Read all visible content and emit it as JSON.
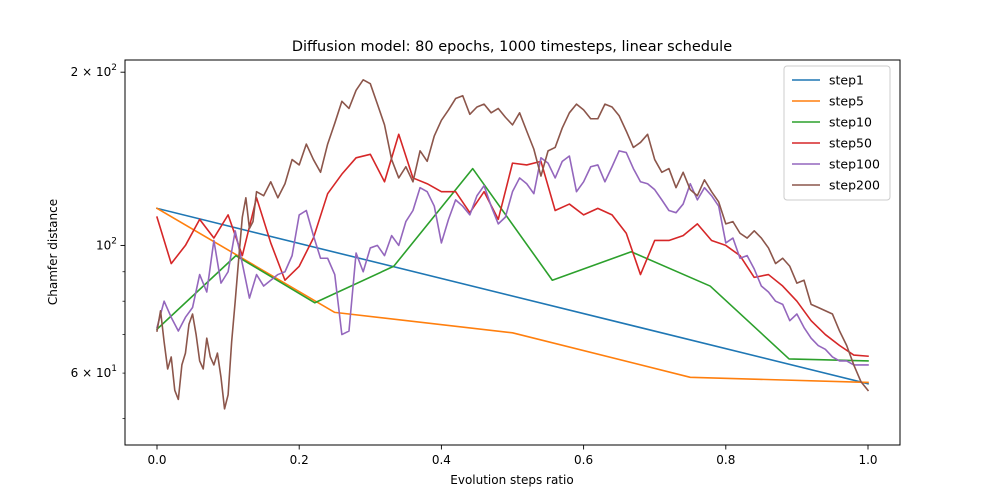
{
  "chart_data": {
    "type": "line",
    "title": "Diffusion model: 80 epochs, 1000 timesteps, linear schedule",
    "xlabel": "Evolution steps ratio",
    "ylabel": "Chamfer distance",
    "xlim": [
      -0.045,
      1.045
    ],
    "ylim": [
      45,
      210
    ],
    "yscale": "log",
    "legend_position": "top-right",
    "x_ticks": [
      {
        "value": 0.0,
        "label": "0.0"
      },
      {
        "value": 0.2,
        "label": "0.2"
      },
      {
        "value": 0.4,
        "label": "0.4"
      },
      {
        "value": 0.6,
        "label": "0.6"
      },
      {
        "value": 0.8,
        "label": "0.8"
      },
      {
        "value": 1.0,
        "label": "1.0"
      }
    ],
    "y_major_ticks": [
      {
        "value": 100,
        "base": "10",
        "exp": "2",
        "mantissa": ""
      },
      {
        "value": 200,
        "base": "10",
        "exp": "2",
        "mantissa": "2 × "
      }
    ],
    "y_minor_ticks": [
      {
        "value": 60,
        "base": "10",
        "exp": "1",
        "mantissa": "6 × "
      },
      {
        "value": 50,
        "label": ""
      },
      {
        "value": 70,
        "label": ""
      },
      {
        "value": 80,
        "label": ""
      },
      {
        "value": 90,
        "label": ""
      }
    ],
    "series": [
      {
        "name": "step1",
        "color": "#1f77b4",
        "x": [
          0.0,
          1.0
        ],
        "y": [
          116,
          57.5
        ]
      },
      {
        "name": "step5",
        "color": "#ff7f0e",
        "x": [
          0.0,
          0.25,
          0.5,
          0.75,
          1.0
        ],
        "y": [
          116,
          76.5,
          70.5,
          59.0,
          57.8
        ]
      },
      {
        "name": "step10",
        "color": "#2ca02c",
        "x": [
          0.0,
          0.111,
          0.222,
          0.333,
          0.444,
          0.556,
          0.667,
          0.778,
          0.889,
          1.0
        ],
        "y": [
          71.5,
          96.0,
          79.5,
          92.0,
          136.0,
          87.0,
          97.5,
          85.0,
          63.5,
          63.0
        ]
      },
      {
        "name": "step50",
        "color": "#d62728",
        "x": [
          0.0,
          0.02,
          0.04,
          0.06,
          0.08,
          0.1,
          0.12,
          0.14,
          0.16,
          0.18,
          0.2,
          0.22,
          0.24,
          0.26,
          0.28,
          0.3,
          0.32,
          0.34,
          0.36,
          0.38,
          0.4,
          0.42,
          0.44,
          0.46,
          0.48,
          0.5,
          0.52,
          0.54,
          0.56,
          0.58,
          0.6,
          0.62,
          0.64,
          0.66,
          0.68,
          0.7,
          0.72,
          0.74,
          0.76,
          0.78,
          0.8,
          0.82,
          0.84,
          0.86,
          0.88,
          0.9,
          0.92,
          0.94,
          0.96,
          0.98,
          1.0
        ],
        "y": [
          112,
          93,
          100,
          111,
          103,
          113,
          96,
          121,
          101,
          87,
          92,
          103,
          123,
          133,
          142,
          144,
          129,
          156,
          131,
          128,
          124,
          124,
          114,
          124,
          111,
          139,
          138,
          140,
          115,
          118,
          113,
          116,
          113,
          105,
          89,
          102,
          102,
          104,
          109,
          102,
          100,
          96,
          88,
          89,
          85,
          80,
          74,
          70,
          67,
          64.5,
          64.2
        ]
      },
      {
        "name": "step100",
        "color": "#9467bd",
        "x": [
          0.0,
          0.01,
          0.02,
          0.03,
          0.04,
          0.05,
          0.06,
          0.07,
          0.08,
          0.09,
          0.1,
          0.11,
          0.12,
          0.13,
          0.14,
          0.15,
          0.16,
          0.17,
          0.18,
          0.19,
          0.2,
          0.21,
          0.22,
          0.23,
          0.24,
          0.25,
          0.26,
          0.27,
          0.28,
          0.29,
          0.3,
          0.31,
          0.32,
          0.33,
          0.34,
          0.35,
          0.36,
          0.37,
          0.38,
          0.39,
          0.4,
          0.41,
          0.42,
          0.43,
          0.44,
          0.45,
          0.46,
          0.47,
          0.48,
          0.49,
          0.5,
          0.51,
          0.52,
          0.53,
          0.54,
          0.55,
          0.56,
          0.57,
          0.58,
          0.59,
          0.6,
          0.61,
          0.62,
          0.63,
          0.64,
          0.65,
          0.66,
          0.67,
          0.68,
          0.69,
          0.7,
          0.71,
          0.72,
          0.73,
          0.74,
          0.75,
          0.76,
          0.77,
          0.78,
          0.79,
          0.8,
          0.81,
          0.82,
          0.83,
          0.84,
          0.85,
          0.86,
          0.87,
          0.88,
          0.89,
          0.9,
          0.91,
          0.92,
          0.93,
          0.94,
          0.95,
          0.96,
          0.97,
          0.98,
          0.99,
          1.0
        ],
        "y": [
          72,
          80,
          75,
          71,
          75,
          78,
          89,
          83,
          102,
          86,
          90,
          106,
          93,
          81,
          89,
          85,
          87,
          89,
          90,
          96,
          113,
          115,
          104,
          95,
          95,
          89,
          70,
          71,
          97,
          90,
          99,
          100,
          96,
          104,
          100,
          110,
          115,
          126,
          124,
          117,
          101,
          111,
          120,
          117,
          113,
          122,
          127,
          117,
          109,
          112,
          124,
          131,
          128,
          123,
          142,
          139,
          131,
          140,
          143,
          124,
          129,
          137,
          138,
          129,
          137,
          146,
          145,
          136,
          129,
          128,
          125,
          120,
          115,
          114,
          118,
          128,
          120,
          126,
          122,
          117,
          101,
          103,
          95,
          96,
          91,
          85,
          83,
          80,
          79,
          74,
          76,
          72,
          69,
          67,
          66,
          64,
          63,
          63,
          62,
          62,
          62
        ]
      },
      {
        "name": "step200",
        "color": "#8c564b",
        "x": [
          0.0,
          0.005,
          0.01,
          0.015,
          0.02,
          0.025,
          0.03,
          0.035,
          0.04,
          0.045,
          0.05,
          0.055,
          0.06,
          0.065,
          0.07,
          0.075,
          0.08,
          0.085,
          0.09,
          0.095,
          0.1,
          0.105,
          0.11,
          0.115,
          0.12,
          0.125,
          0.13,
          0.135,
          0.14,
          0.15,
          0.16,
          0.17,
          0.18,
          0.19,
          0.2,
          0.21,
          0.22,
          0.23,
          0.24,
          0.25,
          0.26,
          0.27,
          0.28,
          0.29,
          0.3,
          0.31,
          0.32,
          0.33,
          0.34,
          0.35,
          0.36,
          0.37,
          0.38,
          0.39,
          0.4,
          0.41,
          0.42,
          0.43,
          0.44,
          0.45,
          0.46,
          0.47,
          0.48,
          0.49,
          0.5,
          0.51,
          0.52,
          0.53,
          0.54,
          0.55,
          0.56,
          0.57,
          0.58,
          0.59,
          0.6,
          0.61,
          0.62,
          0.63,
          0.64,
          0.65,
          0.66,
          0.67,
          0.68,
          0.69,
          0.7,
          0.71,
          0.72,
          0.73,
          0.74,
          0.75,
          0.76,
          0.77,
          0.78,
          0.79,
          0.8,
          0.81,
          0.82,
          0.83,
          0.84,
          0.85,
          0.86,
          0.87,
          0.88,
          0.89,
          0.9,
          0.91,
          0.92,
          0.93,
          0.94,
          0.95,
          0.96,
          0.97,
          0.98,
          0.99,
          1.0
        ],
        "y": [
          71,
          77,
          68,
          61,
          64,
          56,
          54,
          62,
          65,
          73,
          76,
          70,
          63,
          61,
          69,
          64,
          62,
          65,
          59,
          52,
          55,
          68,
          80,
          95,
          112,
          121,
          107,
          110,
          124,
          122,
          129,
          121,
          128,
          141,
          138,
          150,
          141,
          134,
          150,
          163,
          178,
          173,
          186,
          194,
          191,
          176,
          162,
          141,
          131,
          137,
          129,
          146,
          140,
          155,
          165,
          172,
          180,
          182,
          169,
          174,
          176,
          170,
          173,
          167,
          162,
          170,
          158,
          147,
          132,
          146,
          148,
          160,
          170,
          176,
          172,
          166,
          166,
          176,
          174,
          168,
          158,
          148,
          151,
          156,
          141,
          134,
          136,
          126,
          134,
          125,
          122,
          130,
          124,
          119,
          109,
          110,
          105,
          103,
          106,
          103,
          99,
          93,
          95,
          92,
          86,
          87,
          79,
          78,
          77,
          76,
          71,
          67,
          62,
          58,
          56
        ]
      }
    ]
  }
}
